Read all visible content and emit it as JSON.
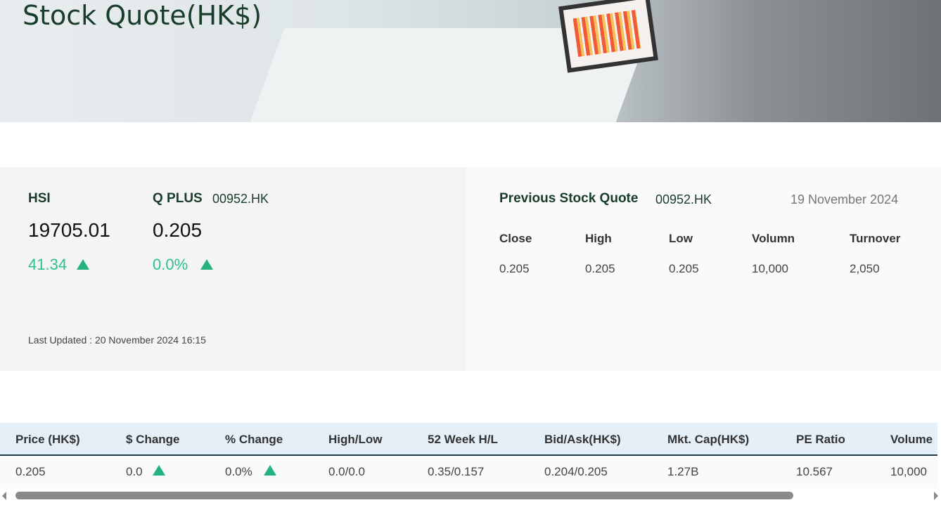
{
  "header": {
    "title": "Stock Quote(HK$)"
  },
  "index": {
    "name": "HSI",
    "value": "19705.01",
    "change": "41.34",
    "direction": "up"
  },
  "stock": {
    "name": "Q PLUS",
    "code": "00952.HK",
    "price": "0.205",
    "change_pct": "0.0%",
    "direction": "up"
  },
  "last_updated": "Last Updated : 20 November 2024 16:15",
  "previous": {
    "title": "Previous Stock Quote",
    "code": "00952.HK",
    "date": "19 November 2024",
    "headers": [
      "Close",
      "High",
      "Low",
      "Volumn",
      "Turnover"
    ],
    "values": [
      "0.205",
      "0.205",
      "0.205",
      "10,000",
      "2,050"
    ]
  },
  "table": {
    "headers": [
      "Price (HK$)",
      "$ Change",
      "% Change",
      "High/Low",
      "52 Week H/L",
      "Bid/Ask(HK$)",
      "Mkt. Cap(HK$)",
      "PE Ratio",
      "Volume"
    ],
    "row": [
      "0.205",
      "0.0",
      "0.0%",
      "0.0/0.0",
      "0.35/0.157",
      "0.204/0.205",
      "1.27B",
      "10.567",
      "10,000"
    ]
  },
  "colors": {
    "up": "#2dc08d",
    "title": "#1a3d2b",
    "table_header_bg": "#e4eff7"
  }
}
